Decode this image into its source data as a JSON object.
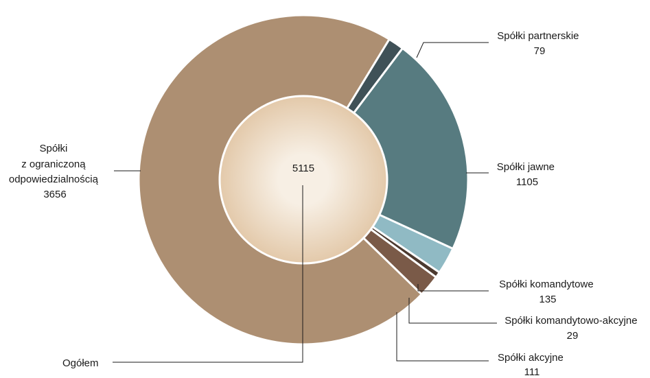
{
  "chart_data": {
    "type": "pie",
    "subtype": "donut",
    "center_value": "5115",
    "center_label": "Ogółem",
    "slices": [
      {
        "label": "Spółki jawne",
        "value": 1105,
        "color": "#577b80"
      },
      {
        "label": "Spółki komandytowe",
        "value": 135,
        "color": "#90bac4"
      },
      {
        "label": "Spółki komandytowo-akcyjne",
        "value": 29,
        "color": "#4c3a30"
      },
      {
        "label": "Spółki akcyjne",
        "value": 111,
        "color": "#7a5a48"
      },
      {
        "label": "Spółki z ograniczoną odpowiedzialnością",
        "value": 3656,
        "color": "#ad8f72"
      },
      {
        "label": "Spółki partnerskie",
        "value": 79,
        "color": "#3f5157"
      }
    ],
    "label_lines": {
      "jawne": [
        "Spółki jawne",
        "1105"
      ],
      "komandytowe": [
        "Spółki komandytowe",
        "135"
      ],
      "komandytowo_akcyjne": [
        "Spółki komandytowo-akcyjne",
        "29"
      ],
      "akcyjne": [
        "Spółki akcyjne",
        "111"
      ],
      "zoo": [
        "Spółki",
        "z ograniczoną",
        "odpowiedzialnością",
        "3656"
      ],
      "partnerskie": [
        "Spółki partnerskie",
        "79"
      ]
    },
    "center_colors": {
      "inner": "#f7efe4",
      "outer": "#e3c9aa"
    }
  }
}
